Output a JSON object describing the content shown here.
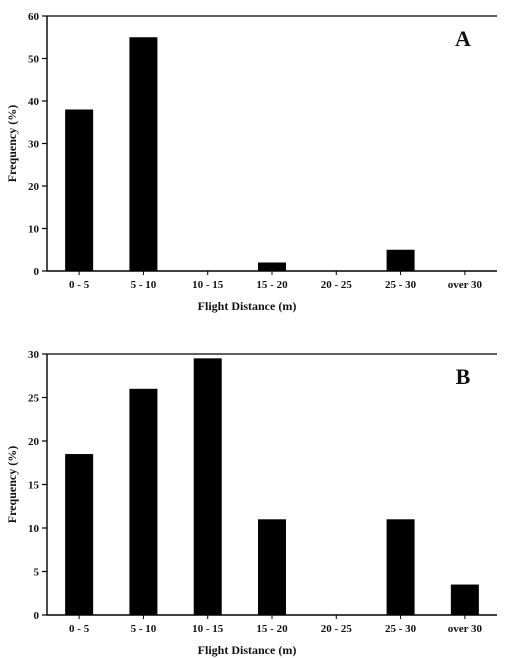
{
  "chart_data": [
    {
      "type": "bar",
      "panel_label": "A",
      "categories": [
        "0 - 5",
        "5 - 10",
        "10 - 15",
        "15 - 20",
        "20 - 25",
        "25 - 30",
        "over 30"
      ],
      "values": [
        38,
        55,
        0,
        2,
        0,
        5,
        0
      ],
      "xlabel": "Flight Distance (m)",
      "ylabel": "Frequency (%)",
      "ylim": [
        0,
        60
      ],
      "yticks": [
        0,
        10,
        20,
        30,
        40,
        50,
        60
      ],
      "bar_color": "#000000",
      "grid": false
    },
    {
      "type": "bar",
      "panel_label": "B",
      "categories": [
        "0 - 5",
        "5 - 10",
        "10 - 15",
        "15 - 20",
        "20 - 25",
        "25 - 30",
        "over 30"
      ],
      "values": [
        18.5,
        26,
        29.5,
        11,
        0,
        11,
        3.5
      ],
      "xlabel": "Flight Distance (m)",
      "ylabel": "Frequency (%)",
      "ylim": [
        0,
        30
      ],
      "yticks": [
        0,
        5,
        10,
        15,
        20,
        25,
        30
      ],
      "bar_color": "#000000",
      "grid": false
    }
  ]
}
